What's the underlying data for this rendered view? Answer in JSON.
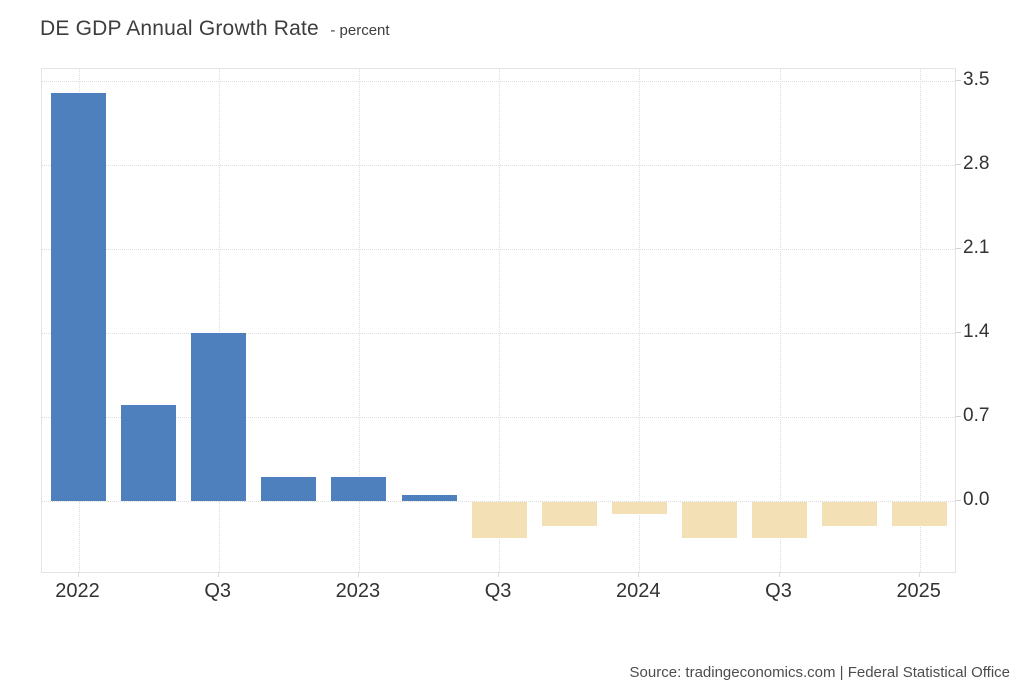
{
  "title": "DE GDP Annual Growth Rate",
  "subtitle": "- percent",
  "source": "Source: tradingeconomics.com | Federal Statistical Office",
  "colors": {
    "positive_bar": "#4d80bd",
    "negative_bar": "#f4e0b5",
    "grid_line": "#dcdcdc",
    "plot_border": "#e4e4e4",
    "axis_text": "#333333",
    "title_text": "#3d3d3d",
    "source_text": "#4d4d4d",
    "background": "#ffffff"
  },
  "chart_data": {
    "type": "bar",
    "title": "DE GDP Annual Growth Rate - percent",
    "categories": [
      "2022 Q1",
      "2022 Q2",
      "2022 Q3",
      "2022 Q4",
      "2023 Q1",
      "2023 Q2",
      "2023 Q3",
      "2023 Q4",
      "2024 Q1",
      "2024 Q2",
      "2024 Q3",
      "2024 Q4",
      "2025 Q1"
    ],
    "values": [
      3.4,
      0.8,
      1.4,
      0.2,
      0.2,
      0.05,
      -0.3,
      -0.2,
      -0.1,
      -0.3,
      -0.3,
      -0.2,
      -0.2
    ],
    "x_tick_labels": [
      "2022",
      "Q3",
      "2023",
      "Q3",
      "2024",
      "Q3",
      "2025"
    ],
    "y_ticks": [
      3.5,
      2.8,
      2.1,
      1.4,
      0.7,
      0.0
    ],
    "y_tick_labels": [
      "3.5",
      "2.8",
      "2.1",
      "1.4",
      "0.7",
      "0.0"
    ],
    "ylim": [
      -0.59,
      3.6
    ],
    "ylabel": "percent",
    "grid": "dotted",
    "legend": false,
    "bar_colors": {
      "positive": "#4d80bd",
      "negative": "#f4e0b5"
    }
  }
}
